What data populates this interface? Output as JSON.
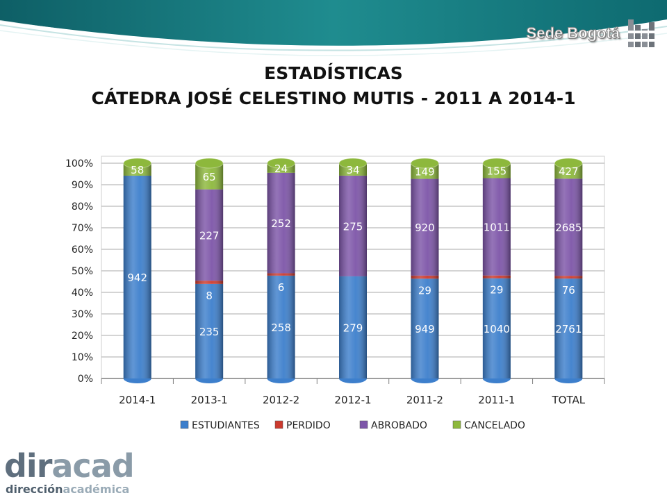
{
  "header": {
    "brand_text": "Sede Bogotá",
    "logo_icon": "un-logo-icon"
  },
  "title": {
    "line1": "ESTADÍSTICAS",
    "line2": "CÁTEDRA JOSÉ CELESTINO MUTIS - 2011 A 2014-1"
  },
  "footer_logo": {
    "big_a": "dir",
    "big_b": "acad",
    "small_a": "dirección",
    "small_b": "académica"
  },
  "colors": {
    "band_teal": "#1f8c8f",
    "estudiantes": "#3d7fcc",
    "perdido": "#cc3a2e",
    "abrobado": "#7d55a8",
    "cancelado": "#8db83c"
  },
  "chart_data": {
    "type": "bar",
    "stacked": "percent",
    "categories": [
      "2014-1",
      "2013-1",
      "2012-2",
      "2012-1",
      "2011-2",
      "2011-1",
      "TOTAL"
    ],
    "series": [
      {
        "name": "ESTUDIANTES",
        "values": [
          942,
          235,
          258,
          279,
          949,
          1040,
          2761
        ],
        "color": "#3d7fcc"
      },
      {
        "name": "PERDIDO",
        "values": [
          0,
          8,
          6,
          0,
          29,
          29,
          76
        ],
        "color": "#cc3a2e"
      },
      {
        "name": "ABROBADO",
        "values": [
          0,
          227,
          252,
          275,
          920,
          1011,
          2685
        ],
        "color": "#7d55a8"
      },
      {
        "name": "CANCELADO",
        "values": [
          58,
          65,
          24,
          34,
          149,
          155,
          427
        ],
        "color": "#8db83c"
      }
    ],
    "data_labels": [
      {
        "series": "ESTUDIANTES",
        "labels": [
          "942",
          "235",
          "258",
          "279",
          "949",
          "1040",
          "2761"
        ]
      },
      {
        "series": "PERDIDO",
        "labels": [
          "",
          "8",
          "6",
          "",
          "29",
          "29",
          "76"
        ]
      },
      {
        "series": "ABROBADO",
        "labels": [
          "",
          "227",
          "252",
          "275",
          "920",
          "1011",
          "2685"
        ]
      },
      {
        "series": "CANCELADO",
        "labels": [
          "58",
          "65",
          "24",
          "34",
          "149",
          "155",
          "427"
        ]
      }
    ],
    "y_ticks": [
      "0%",
      "10%",
      "20%",
      "30%",
      "40%",
      "50%",
      "60%",
      "70%",
      "80%",
      "90%",
      "100%"
    ],
    "ylim": [
      0,
      100
    ],
    "grid": true,
    "legend_position": "bottom",
    "title": "",
    "xlabel": "",
    "ylabel": ""
  }
}
